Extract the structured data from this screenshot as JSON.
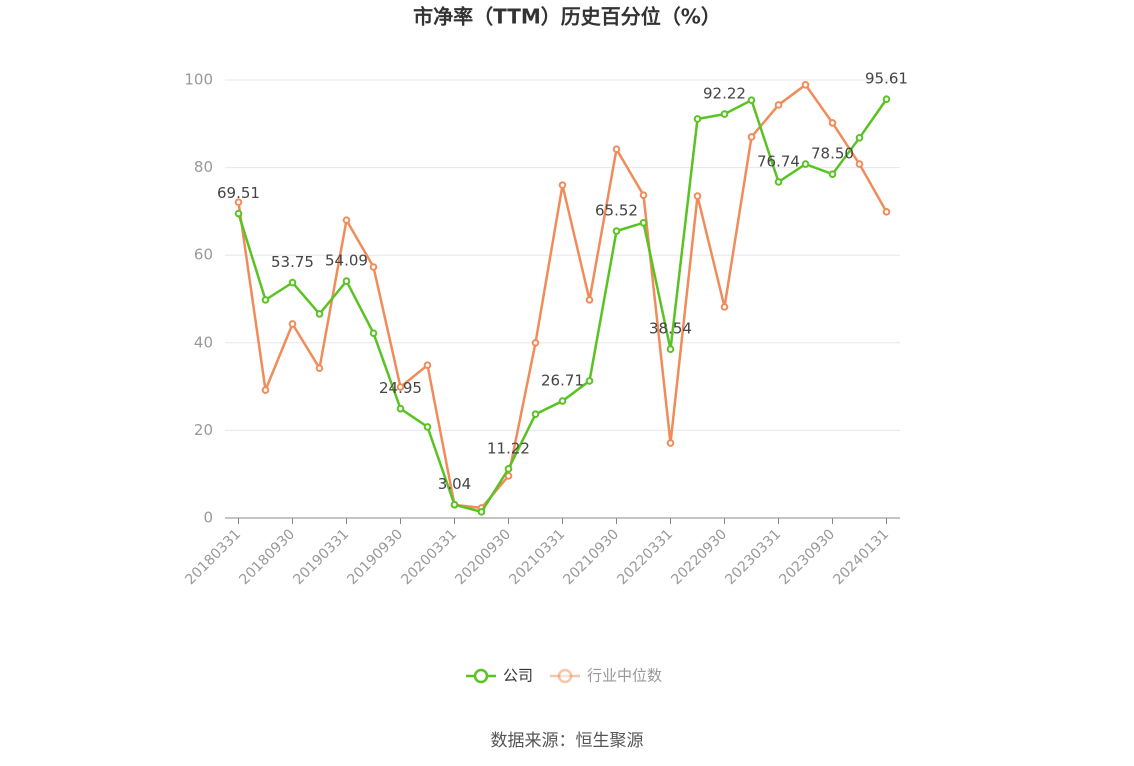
{
  "chart_data": {
    "type": "line",
    "title": "市净率（TTM）历史百分位（%）",
    "source": "数据来源：恒生聚源",
    "categories": [
      "20180331",
      null,
      "20180930",
      null,
      "20190331",
      null,
      "20190930",
      null,
      "20200331",
      null,
      "20200930",
      null,
      "20210331",
      null,
      "20210930",
      null,
      "20220331",
      null,
      "20220930",
      null,
      "20230331",
      null,
      "20230930",
      null,
      "20240131"
    ],
    "series": [
      {
        "name": "公司",
        "color": "#58c322",
        "values": [
          69.51,
          49.8,
          53.75,
          46.6,
          54.09,
          42.2,
          24.95,
          20.8,
          3.04,
          1.4,
          11.22,
          23.7,
          26.71,
          31.3,
          65.52,
          67.4,
          38.54,
          91.1,
          92.22,
          95.4,
          76.74,
          80.8,
          78.5,
          86.8,
          95.61
        ]
      },
      {
        "name": "行业中位数",
        "color": "#f08c5a",
        "values": [
          72.1,
          29.2,
          44.3,
          34.2,
          68.0,
          57.3,
          29.9,
          34.9,
          3.0,
          2.3,
          9.6,
          40.0,
          76.0,
          49.8,
          84.2,
          73.7,
          17.1,
          73.5,
          48.2,
          87.0,
          94.3,
          98.9,
          90.2,
          80.8,
          69.9
        ]
      }
    ],
    "ylim": [
      0,
      100
    ],
    "yticks": [
      0,
      20,
      40,
      60,
      80,
      100
    ],
    "grid": true,
    "legend": "bottom"
  }
}
